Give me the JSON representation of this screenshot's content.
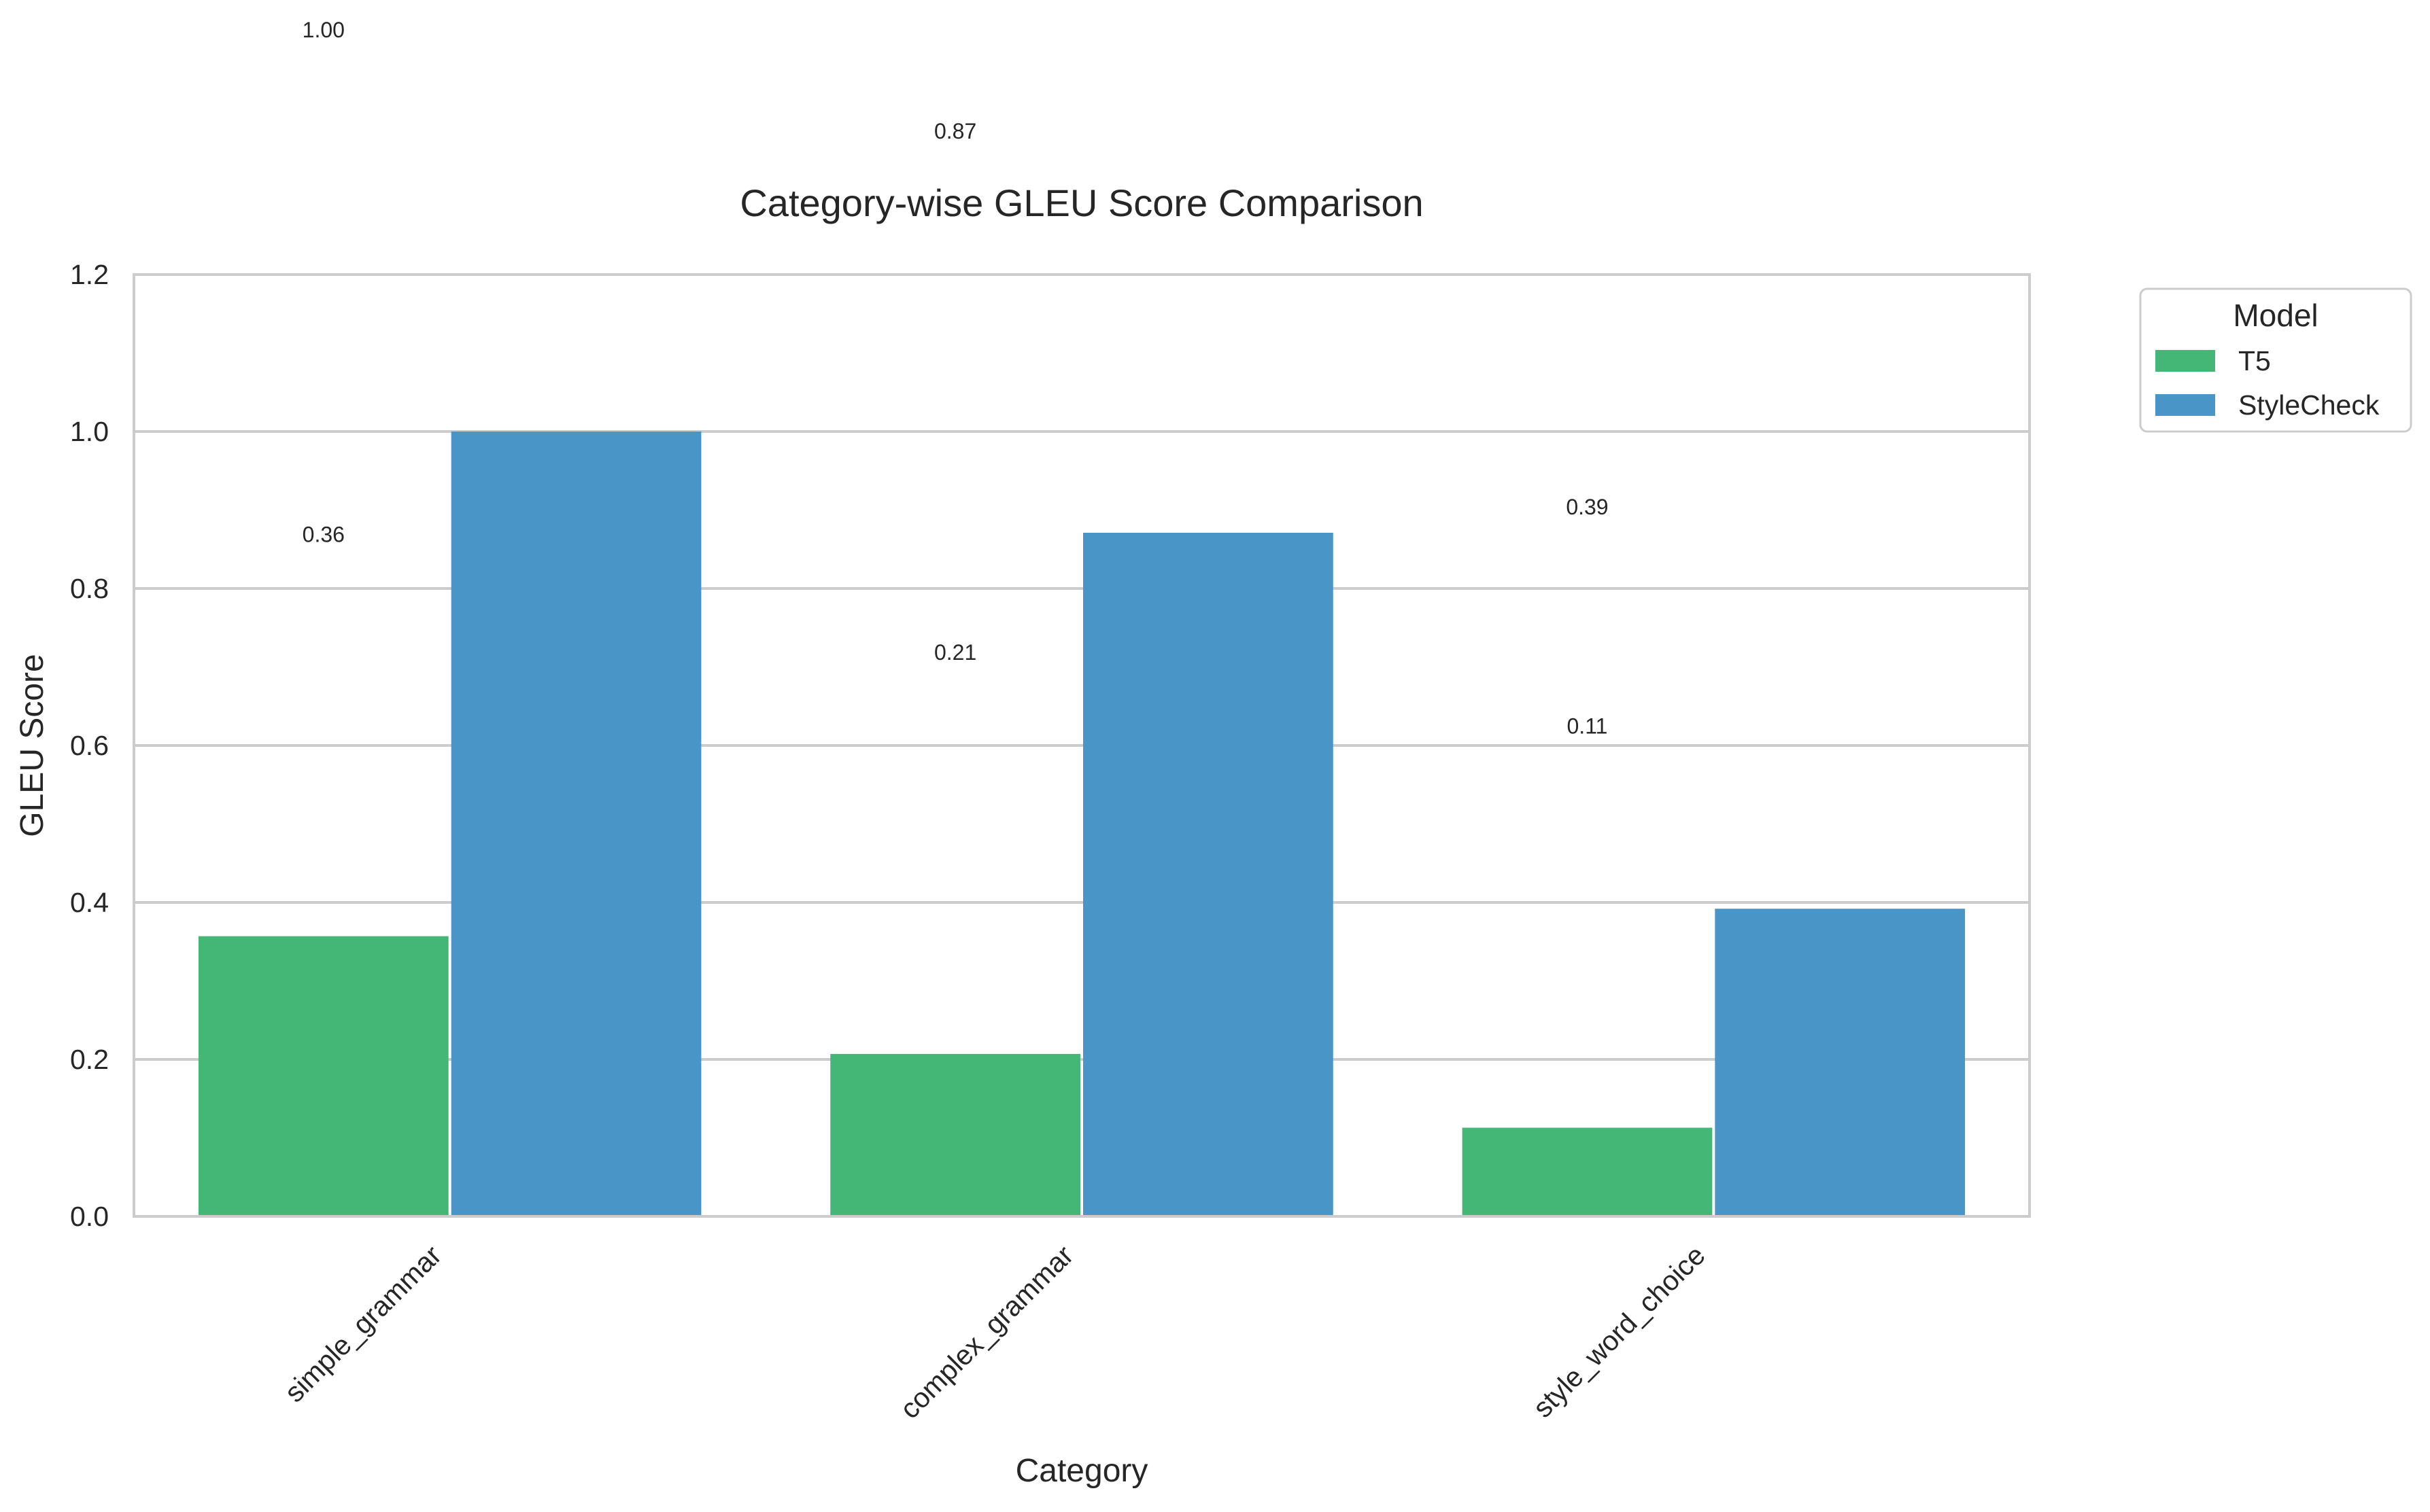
{
  "chart_data": {
    "type": "bar",
    "title": "Category-wise GLEU Score Comparison",
    "xlabel": "Category",
    "ylabel": "GLEU Score",
    "categories": [
      "simple_grammar",
      "complex_grammar",
      "style_word_choice"
    ],
    "series": [
      {
        "name": "T5",
        "values": [
          0.357,
          0.207,
          0.113
        ],
        "labels": [
          "0.36",
          "0.21",
          "0.11"
        ],
        "color": "#44b776"
      },
      {
        "name": "StyleCheck",
        "values": [
          1.0,
          0.871,
          0.392
        ],
        "labels": [
          "1.00",
          "0.87",
          "0.39"
        ],
        "color": "#4a95c7"
      }
    ],
    "ylim": [
      0,
      1.2
    ],
    "yticks": [
      "0.0",
      "0.2",
      "0.4",
      "0.6",
      "0.8",
      "1.0",
      "1.2"
    ],
    "ytick_values": [
      0,
      0.2,
      0.4,
      0.6,
      0.8,
      1.0,
      1.2
    ],
    "grid": true,
    "legend": {
      "title": "Model",
      "placement": "outside top-right"
    }
  }
}
